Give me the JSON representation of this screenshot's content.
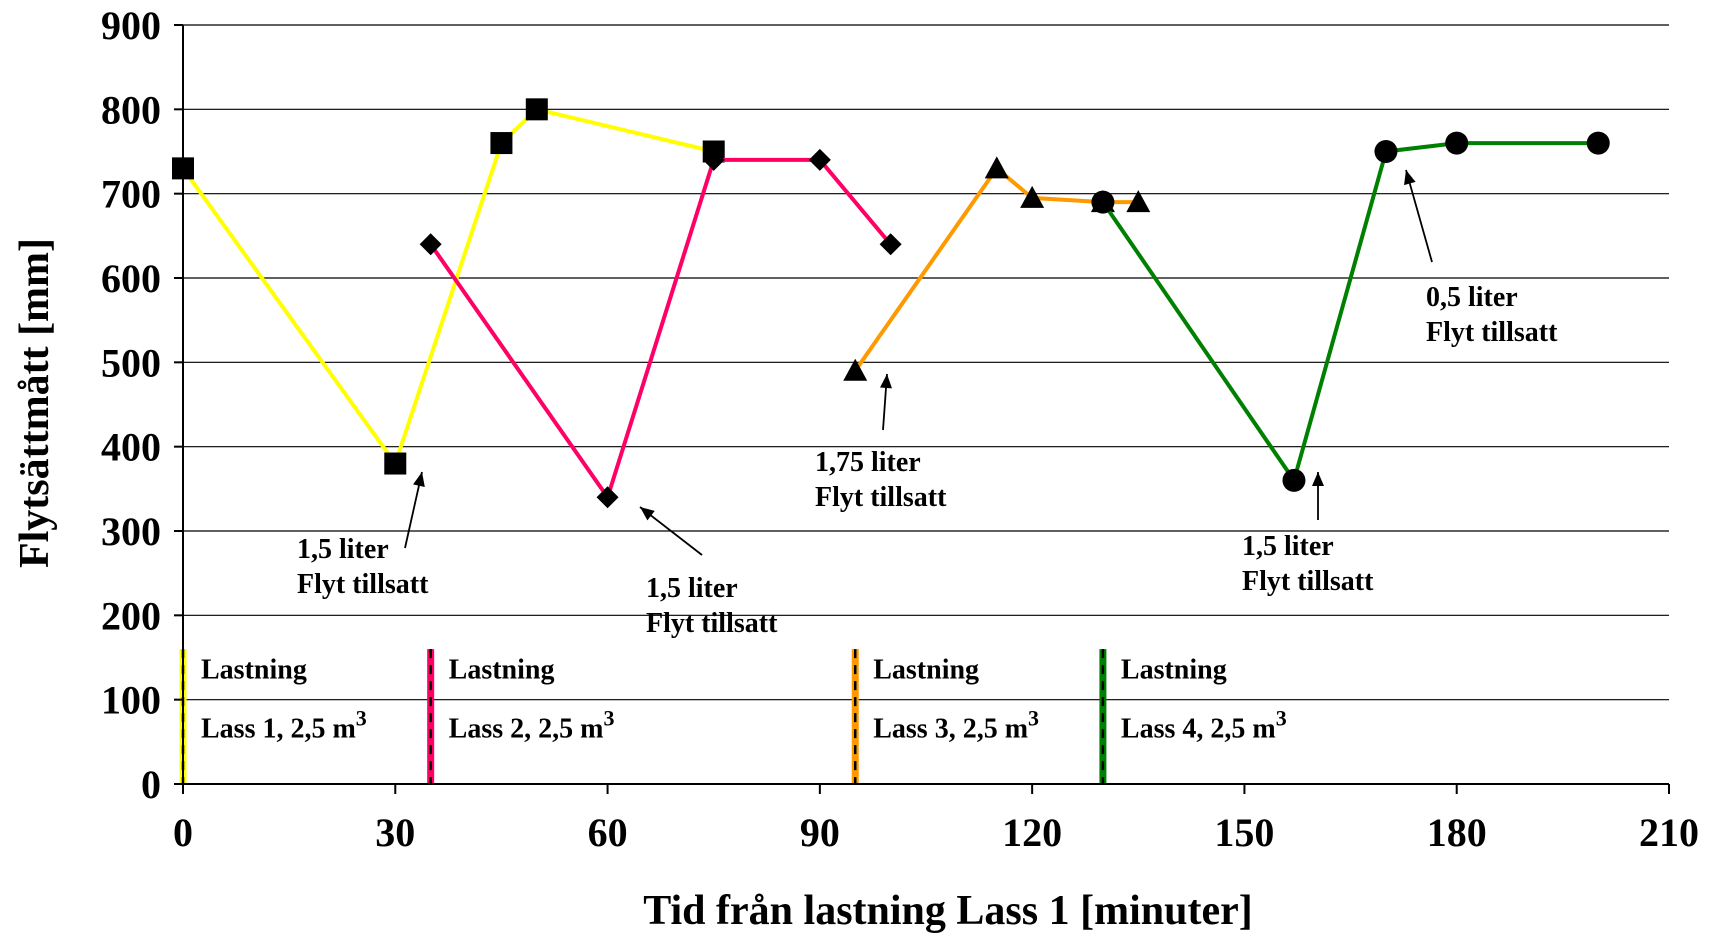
{
  "chart_data": {
    "type": "line",
    "title": "",
    "xlabel": "Tid från lastning Lass 1  [minuter]",
    "ylabel": "Flytsättmått [mm]",
    "xlim": [
      0,
      210
    ],
    "ylim": [
      0,
      900
    ],
    "x_ticks": [
      0,
      30,
      60,
      90,
      120,
      150,
      180,
      210
    ],
    "y_ticks": [
      0,
      100,
      200,
      300,
      400,
      500,
      600,
      700,
      800,
      900
    ],
    "grid": "horizontal",
    "series": [
      {
        "color": "#ffff00",
        "marker": "square",
        "points": [
          [
            0,
            730
          ],
          [
            30,
            380
          ],
          [
            45,
            760
          ],
          [
            50,
            800
          ],
          [
            75,
            750
          ]
        ]
      },
      {
        "color": "#ff0066",
        "marker": "diamond",
        "points": [
          [
            35,
            640
          ],
          [
            60,
            340
          ],
          [
            75,
            740
          ],
          [
            90,
            740
          ],
          [
            100,
            640
          ]
        ]
      },
      {
        "color": "#ff9900",
        "marker": "triangle",
        "points": [
          [
            95,
            490
          ],
          [
            115,
            730
          ],
          [
            120,
            695
          ],
          [
            130,
            690
          ],
          [
            135,
            690
          ]
        ]
      },
      {
        "color": "#008000",
        "marker": "circle",
        "points": [
          [
            130,
            690
          ],
          [
            157,
            360
          ],
          [
            170,
            750
          ],
          [
            180,
            760
          ],
          [
            200,
            760
          ]
        ]
      }
    ],
    "loading_markers": [
      {
        "x": 0,
        "color": "#ffff00",
        "line1": "Lastning",
        "line2": "Lass 1, 2,5 m",
        "sup": "3"
      },
      {
        "x": 35,
        "color": "#ff0066",
        "line1": "Lastning",
        "line2": "Lass 2, 2,5 m",
        "sup": "3"
      },
      {
        "x": 95,
        "color": "#ff9900",
        "line1": "Lastning",
        "line2": "Lass 3, 2,5 m",
        "sup": "3"
      },
      {
        "x": 130,
        "color": "#008000",
        "line1": "Lastning",
        "line2": "Lass 4, 2,5 m",
        "sup": "3"
      }
    ],
    "annotations": [
      {
        "line1": "1,5 liter",
        "line2": "Flyt tillsatt",
        "point": [
          30,
          380
        ]
      },
      {
        "line1": "1,5 liter",
        "line2": "Flyt tillsatt",
        "point": [
          60,
          340
        ]
      },
      {
        "line1": "1,75 liter",
        "line2": "Flyt tillsatt",
        "point": [
          95,
          490
        ]
      },
      {
        "line1": "1,5 liter",
        "line2": "Flyt tillsatt",
        "point": [
          157,
          360
        ]
      },
      {
        "line1": "0,5 liter",
        "line2": "Flyt tillsatt",
        "point": [
          170,
          750
        ]
      }
    ]
  }
}
